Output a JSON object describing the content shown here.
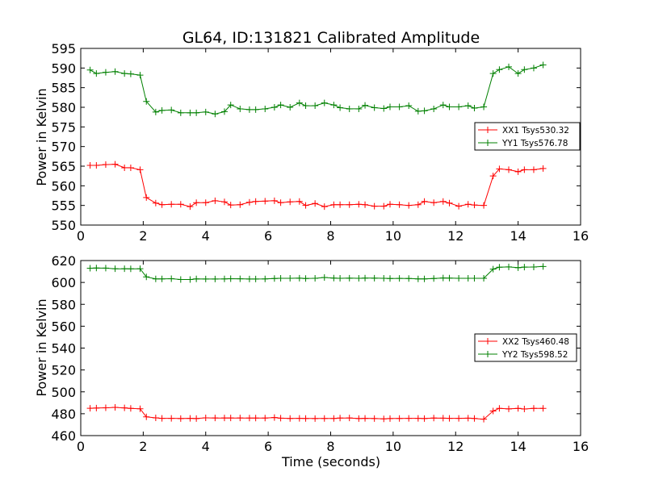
{
  "figure": {
    "title": "GL64, ID:131821 Calibrated Amplitude",
    "xlabel": "Time (seconds)"
  },
  "chart_data": [
    {
      "type": "line",
      "ylabel": "Power in Kelvin",
      "xlim": [
        0,
        16
      ],
      "ylim": [
        550,
        595
      ],
      "xticks": [
        "0",
        "2",
        "4",
        "6",
        "8",
        "10",
        "12",
        "14",
        "16"
      ],
      "yticks": [
        "550",
        "555",
        "560",
        "565",
        "570",
        "575",
        "580",
        "585",
        "590",
        "595"
      ],
      "grid": false,
      "legend_position": "center-right",
      "x": [
        0.3,
        0.5,
        0.8,
        1.1,
        1.4,
        1.6,
        1.9,
        2.1,
        2.4,
        2.6,
        2.9,
        3.2,
        3.5,
        3.7,
        4.0,
        4.3,
        4.6,
        4.8,
        5.1,
        5.4,
        5.6,
        5.9,
        6.2,
        6.4,
        6.7,
        7.0,
        7.2,
        7.5,
        7.8,
        8.1,
        8.3,
        8.6,
        8.9,
        9.1,
        9.4,
        9.7,
        9.9,
        10.2,
        10.5,
        10.8,
        11.0,
        11.3,
        11.6,
        11.8,
        12.1,
        12.4,
        12.6,
        12.9,
        13.2,
        13.4,
        13.7,
        14.0,
        14.2,
        14.5,
        14.8
      ],
      "series": [
        {
          "name": "XX1 Tsys530.32",
          "color": "#ff0000",
          "values": [
            565.2,
            565.2,
            565.4,
            565.5,
            564.6,
            564.6,
            564.1,
            557.0,
            555.6,
            555.2,
            555.3,
            555.3,
            554.7,
            555.7,
            555.7,
            556.2,
            555.9,
            555.1,
            555.2,
            555.8,
            556.0,
            556.1,
            556.2,
            555.7,
            555.9,
            556.0,
            555.0,
            555.5,
            554.7,
            555.2,
            555.2,
            555.2,
            555.3,
            555.2,
            554.8,
            554.8,
            555.3,
            555.2,
            555.0,
            555.2,
            556.0,
            555.7,
            556.0,
            555.6,
            554.8,
            555.3,
            555.1,
            555.0,
            562.5,
            564.3,
            564.1,
            563.6,
            564.1,
            564.1,
            564.4
          ]
        },
        {
          "name": "YY1 Tsys576.78",
          "color": "#008000",
          "values": [
            589.5,
            588.6,
            588.9,
            589.1,
            588.6,
            588.5,
            588.2,
            581.5,
            578.8,
            579.2,
            579.3,
            578.6,
            578.6,
            578.6,
            578.8,
            578.3,
            578.9,
            580.6,
            579.6,
            579.4,
            579.4,
            579.6,
            580.0,
            580.6,
            580.0,
            581.1,
            580.4,
            580.4,
            581.1,
            580.6,
            579.9,
            579.6,
            579.6,
            580.5,
            579.9,
            579.7,
            580.1,
            580.1,
            580.4,
            579.0,
            579.1,
            579.6,
            580.6,
            580.1,
            580.1,
            580.4,
            579.8,
            580.1,
            588.6,
            589.6,
            590.3,
            588.6,
            589.6,
            590.0,
            590.8
          ]
        }
      ]
    },
    {
      "type": "line",
      "ylabel": "Power in Kelvin",
      "xlim": [
        0,
        16
      ],
      "ylim": [
        460,
        620
      ],
      "xticks": [
        "0",
        "2",
        "4",
        "6",
        "8",
        "10",
        "12",
        "14",
        "16"
      ],
      "yticks": [
        "460",
        "480",
        "500",
        "520",
        "540",
        "560",
        "580",
        "600",
        "620"
      ],
      "grid": false,
      "legend_position": "center-right",
      "x": [
        0.3,
        0.5,
        0.8,
        1.1,
        1.4,
        1.6,
        1.9,
        2.1,
        2.4,
        2.6,
        2.9,
        3.2,
        3.5,
        3.7,
        4.0,
        4.3,
        4.6,
        4.8,
        5.1,
        5.4,
        5.6,
        5.9,
        6.2,
        6.4,
        6.7,
        7.0,
        7.2,
        7.5,
        7.8,
        8.1,
        8.3,
        8.6,
        8.9,
        9.1,
        9.4,
        9.7,
        9.9,
        10.2,
        10.5,
        10.8,
        11.0,
        11.3,
        11.6,
        11.8,
        12.1,
        12.4,
        12.6,
        12.9,
        13.2,
        13.4,
        13.7,
        14.0,
        14.2,
        14.5,
        14.8
      ],
      "series": [
        {
          "name": "XX2 Tsys460.48",
          "color": "#ff0000",
          "values": [
            485.0,
            485.2,
            485.4,
            485.8,
            485.3,
            484.9,
            484.5,
            477.1,
            476.2,
            475.8,
            475.8,
            475.6,
            475.8,
            475.6,
            476.2,
            476.1,
            476.1,
            476.1,
            476.1,
            476.0,
            476.0,
            476.0,
            476.5,
            475.9,
            475.7,
            475.8,
            475.7,
            475.6,
            475.7,
            475.7,
            476.0,
            476.1,
            475.6,
            475.8,
            475.6,
            475.3,
            475.6,
            475.7,
            475.8,
            475.8,
            475.6,
            476.0,
            475.9,
            475.8,
            475.8,
            475.9,
            475.7,
            475.0,
            482.5,
            484.9,
            484.4,
            484.9,
            484.3,
            484.9,
            484.9
          ]
        },
        {
          "name": "YY2 Tsys598.52",
          "color": "#008000",
          "values": [
            613.0,
            613.2,
            613.1,
            612.5,
            612.5,
            612.4,
            612.5,
            605.1,
            603.2,
            603.2,
            603.4,
            602.7,
            602.7,
            603.2,
            603.1,
            603.1,
            603.2,
            603.4,
            603.3,
            603.1,
            603.1,
            603.2,
            603.6,
            603.8,
            603.8,
            603.9,
            603.6,
            603.8,
            604.5,
            604.0,
            603.8,
            603.9,
            603.8,
            604.0,
            603.9,
            603.8,
            603.6,
            603.7,
            603.6,
            603.2,
            603.2,
            603.6,
            604.1,
            604.0,
            603.8,
            603.8,
            603.8,
            603.8,
            612.2,
            613.9,
            614.2,
            613.5,
            614.0,
            614.1,
            614.6
          ]
        }
      ]
    }
  ]
}
